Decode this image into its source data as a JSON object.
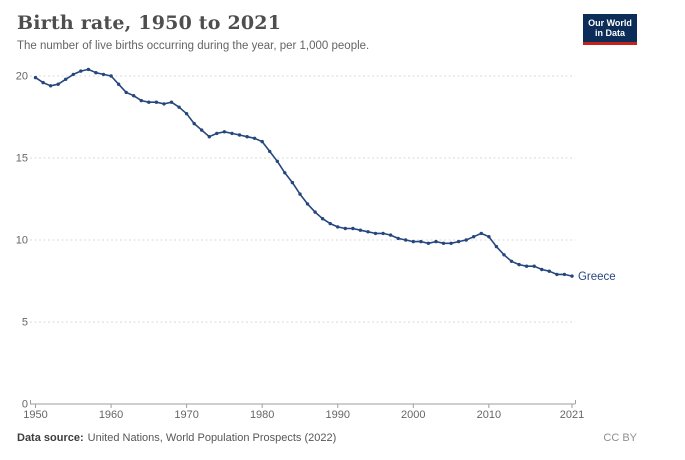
{
  "header": {
    "title": "Birth rate, 1950 to 2021",
    "subtitle": "The number of live births occurring during the year, per 1,000 people."
  },
  "logo": {
    "line1": "Our World",
    "line2": "in Data",
    "bg_color": "#0d2d59",
    "bar_color": "#c0241c"
  },
  "footer": {
    "source_label": "Data source:",
    "source_text": "United Nations, World Population Prospects (2022)",
    "license": "CC BY"
  },
  "chart_data": {
    "type": "line",
    "title": "Birth rate, 1950 to 2021",
    "subtitle": "The number of live births occurring during the year, per 1,000 people.",
    "xlabel": "",
    "ylabel": "",
    "ylim": [
      0,
      20
    ],
    "yticks": [
      0,
      5,
      10,
      15,
      20
    ],
    "xticks": [
      1950,
      1960,
      1970,
      1980,
      1990,
      2000,
      2010,
      2021
    ],
    "grid": "dashed-horizontal",
    "legend_position": "end-of-line-label",
    "x": [
      1950,
      1951,
      1952,
      1953,
      1954,
      1955,
      1956,
      1957,
      1958,
      1959,
      1960,
      1961,
      1962,
      1963,
      1964,
      1965,
      1966,
      1967,
      1968,
      1969,
      1970,
      1971,
      1972,
      1973,
      1974,
      1975,
      1976,
      1977,
      1978,
      1979,
      1980,
      1981,
      1982,
      1983,
      1984,
      1985,
      1986,
      1987,
      1988,
      1989,
      1990,
      1991,
      1992,
      1993,
      1994,
      1995,
      1996,
      1997,
      1998,
      1999,
      2000,
      2001,
      2002,
      2003,
      2004,
      2005,
      2006,
      2007,
      2008,
      2009,
      2010,
      2011,
      2012,
      2013,
      2014,
      2015,
      2016,
      2017,
      2018,
      2019,
      2020,
      2021
    ],
    "series": [
      {
        "name": "Greece",
        "color": "#26477d",
        "values": [
          19.9,
          19.6,
          19.4,
          19.5,
          19.8,
          20.1,
          20.3,
          20.4,
          20.2,
          20.1,
          20.0,
          19.5,
          19.0,
          18.8,
          18.5,
          18.4,
          18.4,
          18.3,
          18.4,
          18.1,
          17.7,
          17.1,
          16.7,
          16.3,
          16.5,
          16.6,
          16.5,
          16.4,
          16.3,
          16.2,
          16.0,
          15.4,
          14.8,
          14.1,
          13.5,
          12.8,
          12.2,
          11.7,
          11.3,
          11.0,
          10.8,
          10.7,
          10.7,
          10.6,
          10.5,
          10.4,
          10.4,
          10.3,
          10.1,
          10.0,
          9.9,
          9.9,
          9.8,
          9.9,
          9.8,
          9.8,
          9.9,
          10.0,
          10.2,
          10.4,
          10.2,
          9.6,
          9.1,
          8.7,
          8.5,
          8.4,
          8.4,
          8.2,
          8.1,
          7.9,
          7.9,
          7.8
        ]
      }
    ],
    "colors": {
      "line": "#26477d",
      "gridline": "#dadada",
      "axis": "#9e9e9e",
      "tick_label": "#666666"
    }
  }
}
